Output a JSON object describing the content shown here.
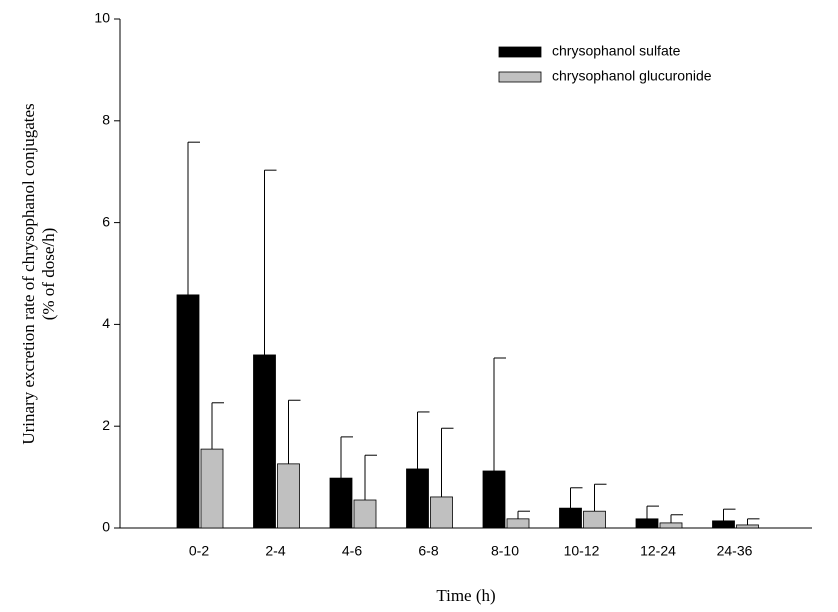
{
  "chart_data": {
    "type": "bar",
    "x_label": "Time (h)",
    "y_label": [
      "Urinary excretion rate of chrysophanol conjugates",
      "(% of dose/h)"
    ],
    "categories": [
      "0-2",
      "2-4",
      "4-6",
      "6-8",
      "8-10",
      "10-12",
      "12-24",
      "24-36"
    ],
    "series": [
      {
        "name": "chrysophanol sulfate",
        "color": "#000000",
        "values": [
          4.58,
          3.4,
          0.98,
          1.16,
          1.12,
          0.39,
          0.18,
          0.14
        ],
        "errors": [
          3.0,
          3.63,
          0.81,
          1.12,
          2.22,
          0.4,
          0.25,
          0.23
        ]
      },
      {
        "name": "chrysophanol glucuronide",
        "color": "#c0c0c0",
        "values": [
          1.55,
          1.26,
          0.55,
          0.61,
          0.18,
          0.33,
          0.1,
          0.06
        ],
        "errors": [
          0.91,
          1.25,
          0.88,
          1.35,
          0.15,
          0.53,
          0.16,
          0.12
        ]
      }
    ],
    "ylim": [
      0,
      10
    ],
    "yticks": [
      0,
      2,
      4,
      6,
      8,
      10
    ],
    "legend": "upper right"
  }
}
